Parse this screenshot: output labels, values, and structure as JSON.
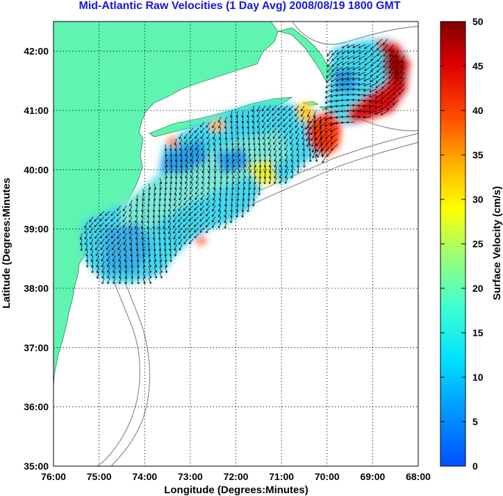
{
  "title": "Mid-Atlantic Raw Velocities (1 Day Avg) 2008/08/19 1800 GMT",
  "map": {
    "xlabel": "Longitude (Degrees:Minutes)",
    "ylabel": "Latitude (Degrees:Minutes",
    "lon_ticks": [
      "76:00",
      "75:00",
      "74:00",
      "73:00",
      "72:00",
      "71:00",
      "70:00",
      "69:00",
      "68:00"
    ],
    "lat_ticks": [
      "35:00",
      "36:00",
      "37:00",
      "38:00",
      "39:00",
      "40:00",
      "41:00",
      "42:00"
    ],
    "lon_range": [
      -76,
      -68
    ],
    "lat_range": [
      35,
      42.5
    ],
    "grid": "dotted",
    "land_color": "#5ff5b0",
    "contour_color": "#8c8c8c",
    "vector_color": "#000000"
  },
  "colorbar": {
    "label": "Surface Velocity (cm/s)",
    "ticks": [
      "0",
      "5",
      "10",
      "15",
      "20",
      "25",
      "30",
      "35",
      "40",
      "45",
      "50"
    ],
    "range": [
      0,
      50
    ],
    "colormap": "jet"
  }
}
